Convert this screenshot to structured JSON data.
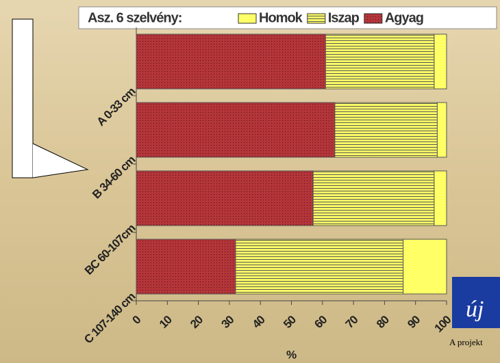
{
  "chart_data": {
    "type": "stacked-bar-horizontal",
    "title": "Asz. 6 szelvény:",
    "categories": [
      "A 0-33 cm",
      "B 34-60 cm",
      "BC 60-107cm",
      "C 107-140 cm"
    ],
    "series": [
      {
        "name": "Agyag",
        "color": "#b3353a",
        "values": [
          61,
          64,
          57,
          32
        ]
      },
      {
        "name": "Iszap",
        "color": "#ffff66",
        "values": [
          35,
          33,
          39,
          54
        ]
      },
      {
        "name": "Homok",
        "color": "#ffff66",
        "values": [
          4,
          3,
          4,
          14
        ]
      }
    ],
    "xlim": [
      0,
      100
    ],
    "xticks": [
      0,
      10,
      20,
      30,
      40,
      50,
      60,
      70,
      80,
      90,
      100
    ],
    "xlabel": "%"
  },
  "overlay": {
    "logo": "új",
    "footer": "A projekt"
  }
}
